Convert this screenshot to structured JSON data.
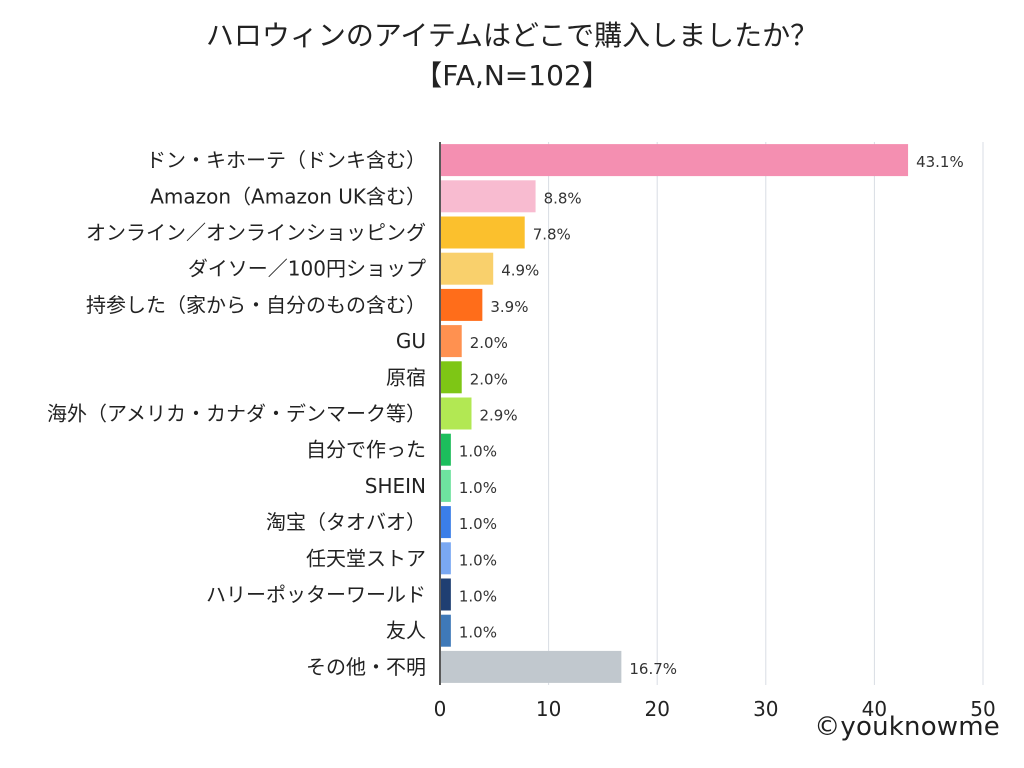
{
  "title": {
    "line1": "ハロウィンのアイテムはどこで購入しましたか？",
    "line2": "【FA,N=102】"
  },
  "watermark": "©youknowme",
  "chart_data": {
    "type": "bar",
    "orientation": "horizontal",
    "categories": [
      "ドン・キホーテ（ドンキ含む）",
      "Amazon（Amazon UK含む）",
      "オンライン／オンラインショッピング",
      "ダイソー／100円ショップ",
      "持参した（家から・自分のもの含む）",
      "GU",
      "原宿",
      "海外（アメリカ・カナダ・デンマーク等）",
      "自分で作った",
      "SHEIN",
      "淘宝（タオバオ）",
      "任天堂ストア",
      "ハリーポッターワールド",
      "友人",
      "その他・不明"
    ],
    "values": [
      43.1,
      8.8,
      7.8,
      4.9,
      3.9,
      2.0,
      2.0,
      2.9,
      1.0,
      1.0,
      1.0,
      1.0,
      1.0,
      1.0,
      16.7
    ],
    "data_labels": [
      "43.1%",
      "8.8%",
      "7.8%",
      "4.9%",
      "3.9%",
      "2.0%",
      "2.0%",
      "2.9%",
      "1.0%",
      "1.0%",
      "1.0%",
      "1.0%",
      "1.0%",
      "1.0%",
      "16.7%"
    ],
    "colors": [
      "#f48fb1",
      "#f8bbd0",
      "#fbc02d",
      "#f9d06c",
      "#ff6d1a",
      "#ff9150",
      "#7ec615",
      "#b2e853",
      "#1cbe5c",
      "#6ee29f",
      "#3b7ee8",
      "#7aa8f2",
      "#1f3f72",
      "#3f79b8",
      "#c1c8ce"
    ],
    "x_ticks": [
      "0",
      "10",
      "20",
      "30",
      "40",
      "50"
    ],
    "x_tick_values": [
      0,
      10,
      20,
      30,
      40,
      50
    ],
    "xlim": [
      0,
      50
    ],
    "grid_color": "#d8dde4",
    "axis_color": "#222222",
    "label_color": "#222222",
    "data_label_color": "#333333",
    "grid": true,
    "xlabel": "",
    "ylabel": ""
  }
}
